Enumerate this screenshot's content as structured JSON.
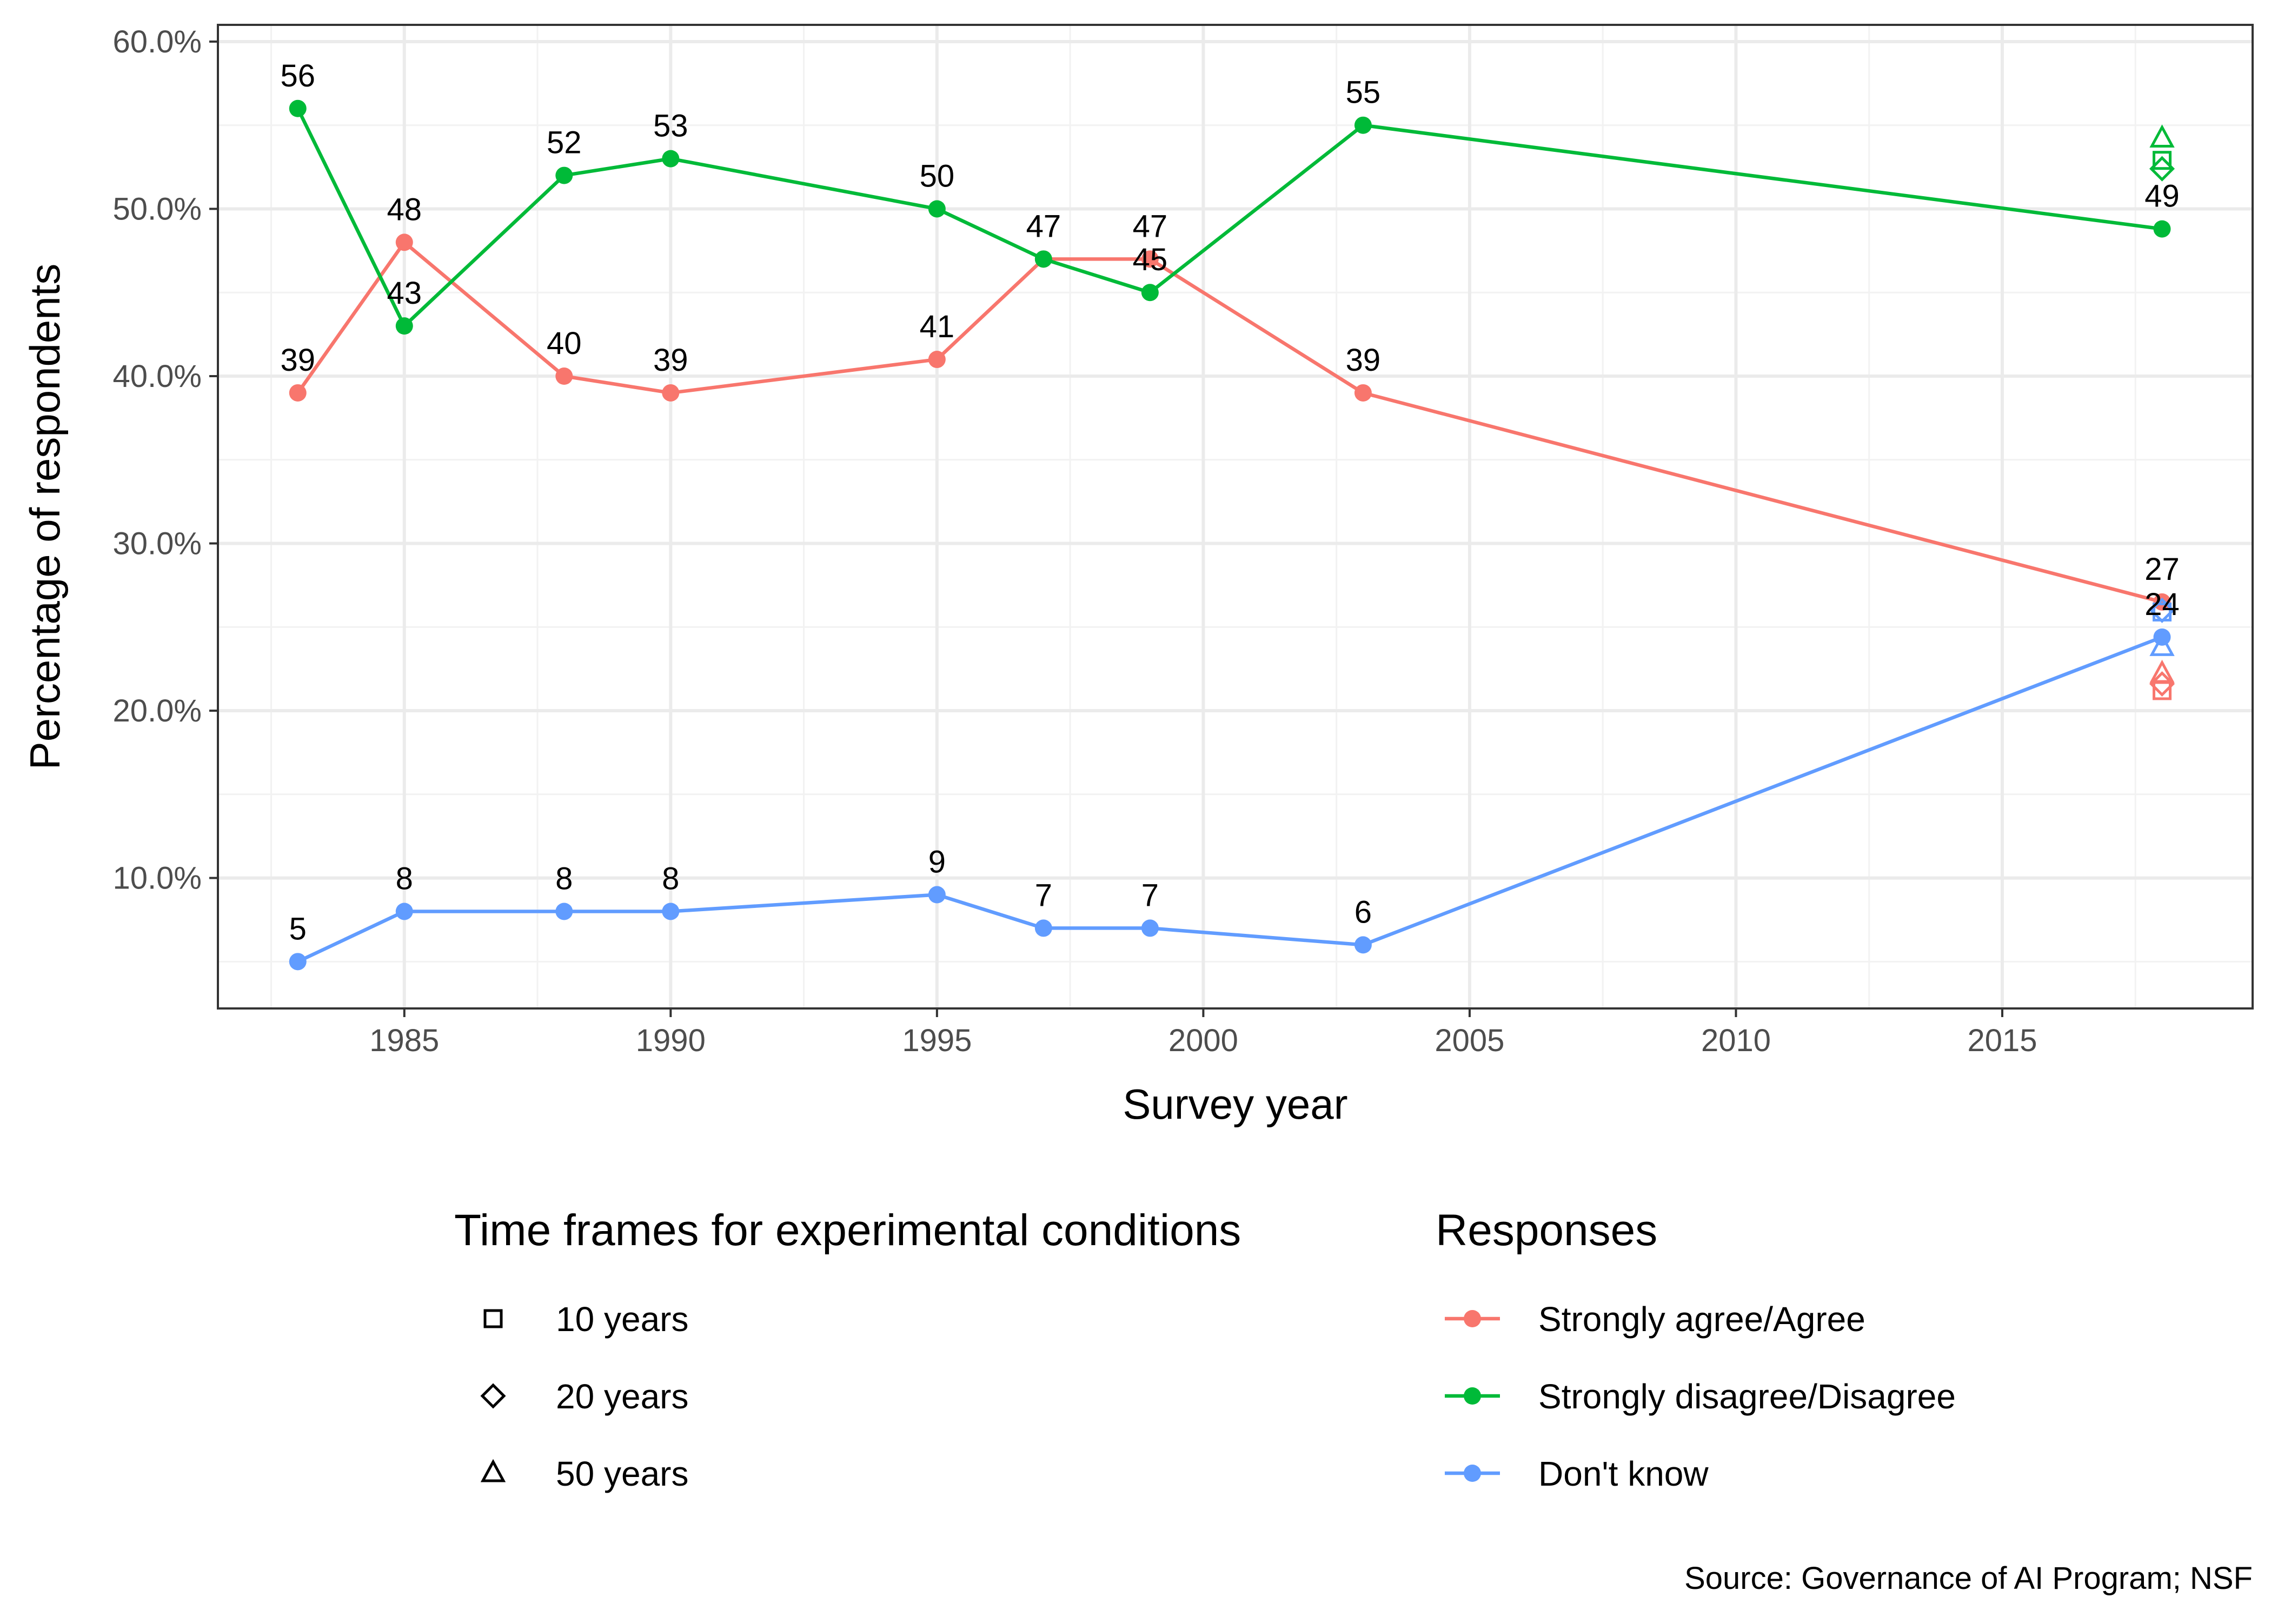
{
  "chart_data": {
    "type": "line",
    "xlabel": "Survey year",
    "ylabel": "Percentage of respondents",
    "xlim": [
      1981.5,
      2019.7
    ],
    "ylim": [
      2.2,
      61.0
    ],
    "x_ticks": [
      1985,
      1990,
      1995,
      2000,
      2005,
      2010,
      2015
    ],
    "x_tick_labels": [
      "1985",
      "1990",
      "1995",
      "2000",
      "2005",
      "2010",
      "2015"
    ],
    "y_ticks": [
      10,
      20,
      30,
      40,
      50,
      60
    ],
    "y_tick_labels": [
      "10.0%",
      "20.0%",
      "30.0%",
      "40.0%",
      "50.0%",
      "60.0%"
    ],
    "grid": true,
    "x": [
      1983,
      1985,
      1988,
      1990,
      1995,
      1997,
      1999,
      2003,
      2018
    ],
    "series": [
      {
        "name": "Strongly agree/Agree",
        "color": "#F8766D",
        "values": [
          39,
          48,
          40,
          39,
          41,
          47,
          47,
          39,
          26.5
        ],
        "labels": [
          "39",
          "48",
          "40",
          "39",
          "41",
          "47",
          "47",
          "39",
          "27"
        ]
      },
      {
        "name": "Strongly disagree/Disagree",
        "color": "#00BA38",
        "values": [
          56,
          43,
          52,
          53,
          50,
          47,
          45,
          55,
          48.8
        ],
        "labels": [
          "56",
          "43",
          "52",
          "53",
          "50",
          "47",
          "45",
          "55",
          "49"
        ]
      },
      {
        "name": "Don't know",
        "color": "#619CFF",
        "values": [
          5,
          8,
          8,
          8,
          9,
          7,
          7,
          6,
          24.4
        ],
        "labels": [
          "5",
          "8",
          "8",
          "8",
          "9",
          "7",
          "7",
          "6",
          "24"
        ]
      }
    ],
    "experimental_points": [
      {
        "response": "Strongly agree/Agree",
        "timeframe": "10 years",
        "shape": "square",
        "x": 2018,
        "y": 21.2,
        "color": "#F8766D"
      },
      {
        "response": "Strongly agree/Agree",
        "timeframe": "20 years",
        "shape": "diamond",
        "x": 2018,
        "y": 21.6,
        "color": "#F8766D"
      },
      {
        "response": "Strongly agree/Agree",
        "timeframe": "50 years",
        "shape": "triangle",
        "x": 2018,
        "y": 22.2,
        "color": "#F8766D"
      },
      {
        "response": "Strongly disagree/Disagree",
        "timeframe": "10 years",
        "shape": "square",
        "x": 2018,
        "y": 52.9,
        "color": "#00BA38"
      },
      {
        "response": "Strongly disagree/Disagree",
        "timeframe": "20 years",
        "shape": "diamond",
        "x": 2018,
        "y": 52.4,
        "color": "#00BA38"
      },
      {
        "response": "Strongly disagree/Disagree",
        "timeframe": "50 years",
        "shape": "triangle",
        "x": 2018,
        "y": 54.2,
        "color": "#00BA38"
      },
      {
        "response": "Don't know",
        "timeframe": "10 years",
        "shape": "square",
        "x": 2018,
        "y": 25.9,
        "color": "#619CFF"
      },
      {
        "response": "Don't know",
        "timeframe": "20 years",
        "shape": "diamond",
        "x": 2018,
        "y": 26.0,
        "color": "#619CFF"
      },
      {
        "response": "Don't know",
        "timeframe": "50 years",
        "shape": "triangle",
        "x": 2018,
        "y": 23.8,
        "color": "#619CFF"
      }
    ],
    "legend_placement": "bottom",
    "legends": {
      "shape": {
        "title": "Time frames for experimental conditions",
        "items": [
          {
            "label": "10 years",
            "shape": "square"
          },
          {
            "label": "20 years",
            "shape": "diamond"
          },
          {
            "label": "50 years",
            "shape": "triangle"
          }
        ]
      },
      "color": {
        "title": "Responses",
        "items": [
          {
            "label": "Strongly agree/Agree",
            "color": "#F8766D"
          },
          {
            "label": "Strongly disagree/Disagree",
            "color": "#00BA38"
          },
          {
            "label": "Don't know",
            "color": "#619CFF"
          }
        ]
      }
    },
    "caption": "Source: Governance of AI Program; NSF"
  }
}
